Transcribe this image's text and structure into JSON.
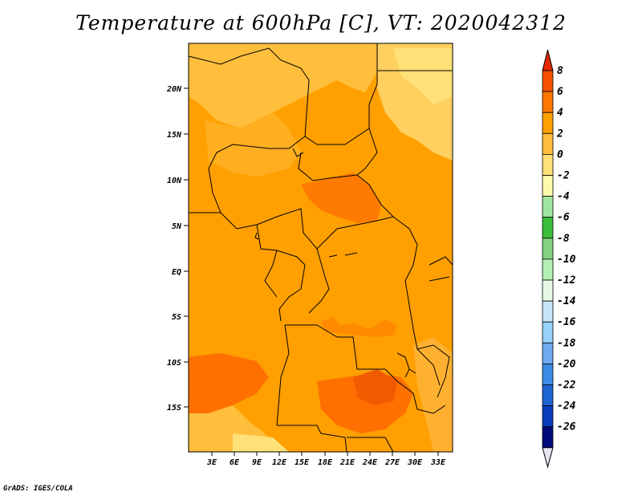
{
  "title": "Temperature at 600hPa [C], VT: 2020042312",
  "credit": "GrADS: IGES/COLA",
  "map": {
    "lat_labels": [
      "20N",
      "15N",
      "10N",
      "5N",
      "EQ",
      "5S",
      "10S",
      "15S"
    ],
    "lon_labels": [
      "3E",
      "6E",
      "9E",
      "12E",
      "15E",
      "18E",
      "21E",
      "24E",
      "27E",
      "30E",
      "33E"
    ],
    "base_color": "#ffa000"
  },
  "colorbar": {
    "levels": [
      "8",
      "6",
      "4",
      "2",
      "0",
      "-2",
      "-4",
      "-6",
      "-8",
      "-10",
      "-12",
      "-14",
      "-16",
      "-18",
      "-20",
      "-22",
      "-24",
      "-26"
    ],
    "colors_top_to_bottom": [
      "#e62800",
      "#f55000",
      "#ff7800",
      "#ffa000",
      "#ffbe3c",
      "#ffe178",
      "#fffaaa",
      "#a0e6a0",
      "#3cbe3c",
      "#82d282",
      "#b4f0b4",
      "#e6fae6",
      "#c8e6fa",
      "#96d2fa",
      "#6eaaf0",
      "#3c8ce6",
      "#1e64d2",
      "#0a3cbe",
      "#000a78",
      "#e6e6f0"
    ]
  }
}
